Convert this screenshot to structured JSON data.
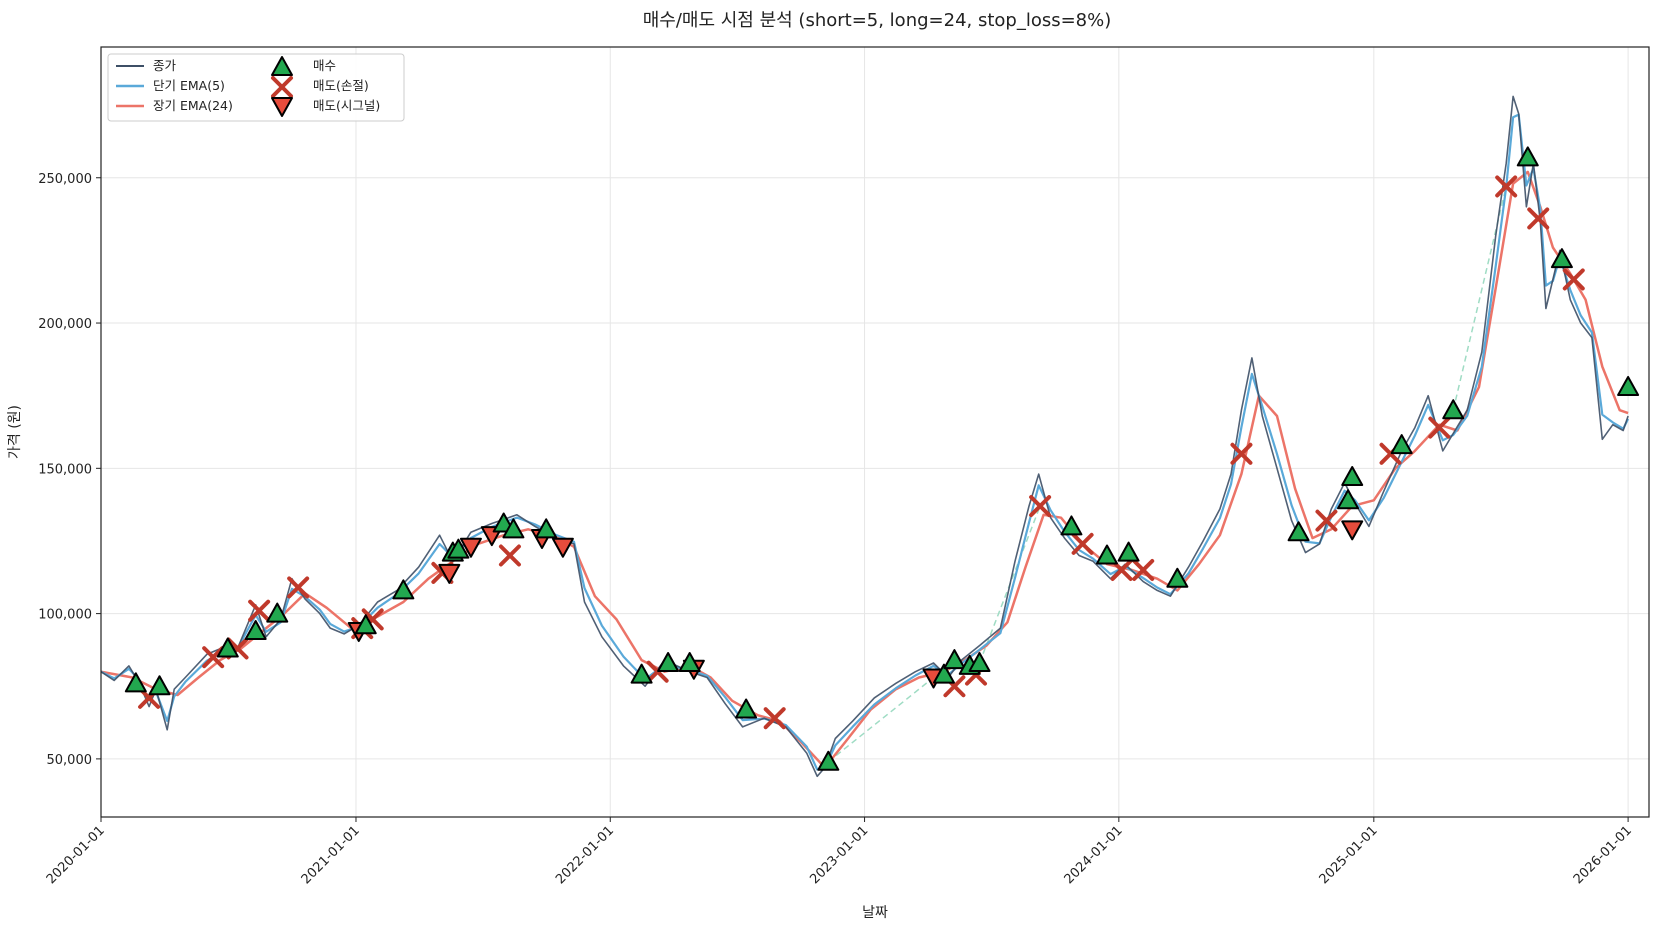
{
  "chart_data": {
    "type": "line",
    "title": "매수/매도 시점 분석 (short=5, long=24, stop_loss=8%)",
    "xlabel": "날짜",
    "ylabel": "가격 (원)",
    "x_range": [
      "2020-01-01",
      "2026-01-31"
    ],
    "ylim": [
      30000,
      295000
    ],
    "grid": true,
    "legend_position": "top-left",
    "x_ticks": [
      "2020-01-01",
      "2021-01-01",
      "2022-01-01",
      "2023-01-01",
      "2024-01-01",
      "2025-01-01",
      "2026-01-01"
    ],
    "y_ticks": [
      50000,
      100000,
      150000,
      200000,
      250000
    ],
    "y_tick_labels": [
      "50,000",
      "100,000",
      "150,000",
      "200,000",
      "250,000"
    ],
    "legend": {
      "close": "종가",
      "ema_short": "단기 EMA(5)",
      "ema_long": "장기 EMA(24)",
      "buy": "매수",
      "sell_stop": "매도(손절)",
      "sell_signal": "매도(시그널)"
    },
    "colors": {
      "close": "#3d4f66",
      "ema_short": "#5aa9d9",
      "ema_long": "#ec7468",
      "buy": "#22a84f",
      "sell_stop": "#c0392b",
      "sell_signal": "#e74c3c",
      "trade_path": "#9fdcc4"
    },
    "close_series": [
      [
        "2020-01-01",
        80000
      ],
      [
        "2020-01-20",
        77000
      ],
      [
        "2020-02-10",
        82000
      ],
      [
        "2020-02-25",
        76000
      ],
      [
        "2020-03-10",
        68000
      ],
      [
        "2020-03-20",
        74000
      ],
      [
        "2020-04-05",
        60000
      ],
      [
        "2020-04-15",
        74000
      ],
      [
        "2020-05-01",
        78000
      ],
      [
        "2020-06-01",
        86000
      ],
      [
        "2020-07-01",
        89000
      ],
      [
        "2020-07-15",
        88000
      ],
      [
        "2020-08-10",
        103000
      ],
      [
        "2020-08-25",
        92000
      ],
      [
        "2020-09-15",
        98000
      ],
      [
        "2020-10-01",
        112000
      ],
      [
        "2020-10-20",
        105000
      ],
      [
        "2020-11-10",
        100000
      ],
      [
        "2020-11-25",
        95000
      ],
      [
        "2020-12-15",
        93000
      ],
      [
        "2021-01-05",
        96000
      ],
      [
        "2021-02-01",
        104000
      ],
      [
        "2021-03-01",
        108000
      ],
      [
        "2021-04-01",
        116000
      ],
      [
        "2021-05-01",
        127000
      ],
      [
        "2021-05-20",
        118000
      ],
      [
        "2021-06-15",
        128000
      ],
      [
        "2021-07-15",
        131000
      ],
      [
        "2021-08-20",
        134000
      ],
      [
        "2021-09-15",
        130000
      ],
      [
        "2021-10-15",
        126000
      ],
      [
        "2021-11-10",
        124000
      ],
      [
        "2021-11-25",
        104000
      ],
      [
        "2021-12-20",
        92000
      ],
      [
        "2022-01-20",
        82000
      ],
      [
        "2022-02-20",
        75000
      ],
      [
        "2022-03-20",
        84000
      ],
      [
        "2022-04-25",
        80000
      ],
      [
        "2022-05-20",
        78000
      ],
      [
        "2022-06-15",
        69000
      ],
      [
        "2022-07-10",
        61000
      ],
      [
        "2022-08-10",
        64000
      ],
      [
        "2022-09-10",
        61000
      ],
      [
        "2022-10-10",
        52000
      ],
      [
        "2022-10-25",
        44000
      ],
      [
        "2022-11-05",
        47000
      ],
      [
        "2022-11-20",
        57000
      ],
      [
        "2022-12-15",
        63000
      ],
      [
        "2023-01-15",
        71000
      ],
      [
        "2023-02-15",
        76000
      ],
      [
        "2023-03-15",
        80000
      ],
      [
        "2023-04-10",
        83000
      ],
      [
        "2023-05-01",
        78000
      ],
      [
        "2023-05-20",
        84000
      ],
      [
        "2023-06-15",
        89000
      ],
      [
        "2023-07-15",
        95000
      ],
      [
        "2023-08-05",
        118000
      ],
      [
        "2023-08-25",
        137000
      ],
      [
        "2023-09-08",
        148000
      ],
      [
        "2023-09-25",
        133000
      ],
      [
        "2023-10-15",
        126000
      ],
      [
        "2023-11-05",
        120000
      ],
      [
        "2023-11-25",
        118000
      ],
      [
        "2023-12-20",
        112000
      ],
      [
        "2024-01-10",
        117000
      ],
      [
        "2024-02-05",
        111000
      ],
      [
        "2024-02-25",
        108000
      ],
      [
        "2024-03-15",
        106000
      ],
      [
        "2024-04-10",
        116000
      ],
      [
        "2024-05-01",
        125000
      ],
      [
        "2024-05-25",
        136000
      ],
      [
        "2024-06-10",
        148000
      ],
      [
        "2024-06-25",
        170000
      ],
      [
        "2024-07-10",
        188000
      ],
      [
        "2024-07-25",
        168000
      ],
      [
        "2024-08-15",
        150000
      ],
      [
        "2024-09-05",
        132000
      ],
      [
        "2024-09-25",
        121000
      ],
      [
        "2024-10-15",
        124000
      ],
      [
        "2024-11-01",
        136000
      ],
      [
        "2024-11-20",
        145000
      ],
      [
        "2024-12-05",
        138000
      ],
      [
        "2024-12-25",
        130000
      ],
      [
        "2025-01-15",
        142000
      ],
      [
        "2025-02-10",
        156000
      ],
      [
        "2025-03-01",
        164000
      ],
      [
        "2025-03-20",
        175000
      ],
      [
        "2025-04-10",
        156000
      ],
      [
        "2025-04-25",
        162000
      ],
      [
        "2025-05-15",
        170000
      ],
      [
        "2025-06-05",
        190000
      ],
      [
        "2025-06-25",
        230000
      ],
      [
        "2025-07-10",
        255000
      ],
      [
        "2025-07-20",
        278000
      ],
      [
        "2025-07-28",
        272000
      ],
      [
        "2025-08-08",
        240000
      ],
      [
        "2025-08-18",
        255000
      ],
      [
        "2025-08-28",
        235000
      ],
      [
        "2025-09-05",
        205000
      ],
      [
        "2025-09-15",
        215000
      ],
      [
        "2025-09-25",
        225000
      ],
      [
        "2025-10-10",
        208000
      ],
      [
        "2025-10-25",
        200000
      ],
      [
        "2025-11-10",
        195000
      ],
      [
        "2025-11-25",
        160000
      ],
      [
        "2025-12-10",
        165000
      ],
      [
        "2025-12-25",
        163000
      ],
      [
        "2026-01-01",
        168000
      ]
    ],
    "ema_long_series": [
      [
        "2020-01-01",
        80000
      ],
      [
        "2020-02-15",
        78000
      ],
      [
        "2020-03-20",
        74000
      ],
      [
        "2020-04-20",
        72000
      ],
      [
        "2020-05-20",
        78000
      ],
      [
        "2020-06-20",
        84000
      ],
      [
        "2020-07-20",
        88000
      ],
      [
        "2020-08-20",
        94000
      ],
      [
        "2020-09-20",
        100000
      ],
      [
        "2020-10-20",
        107000
      ],
      [
        "2020-11-20",
        102000
      ],
      [
        "2020-12-25",
        95000
      ],
      [
        "2021-02-01",
        99000
      ],
      [
        "2021-03-10",
        104000
      ],
      [
        "2021-04-15",
        112000
      ],
      [
        "2021-05-20",
        118000
      ],
      [
        "2021-06-25",
        124000
      ],
      [
        "2021-08-01",
        127000
      ],
      [
        "2021-09-05",
        129000
      ],
      [
        "2021-10-10",
        127000
      ],
      [
        "2021-11-10",
        123000
      ],
      [
        "2021-12-10",
        106000
      ],
      [
        "2022-01-10",
        98000
      ],
      [
        "2022-02-15",
        84000
      ],
      [
        "2022-03-20",
        80000
      ],
      [
        "2022-04-25",
        82000
      ],
      [
        "2022-05-25",
        78000
      ],
      [
        "2022-06-25",
        70000
      ],
      [
        "2022-08-01",
        65000
      ],
      [
        "2022-09-01",
        63000
      ],
      [
        "2022-10-01",
        56000
      ],
      [
        "2022-11-05",
        47000
      ],
      [
        "2022-12-05",
        56000
      ],
      [
        "2023-01-10",
        67000
      ],
      [
        "2023-02-15",
        74000
      ],
      [
        "2023-03-20",
        78000
      ],
      [
        "2023-04-25",
        80000
      ],
      [
        "2023-05-25",
        84000
      ],
      [
        "2023-06-25",
        89000
      ],
      [
        "2023-07-25",
        97000
      ],
      [
        "2023-08-20",
        116000
      ],
      [
        "2023-09-15",
        134000
      ],
      [
        "2023-10-10",
        133000
      ],
      [
        "2023-11-10",
        124000
      ],
      [
        "2023-12-15",
        117000
      ],
      [
        "2024-01-20",
        115000
      ],
      [
        "2024-02-25",
        112000
      ],
      [
        "2024-03-25",
        108000
      ],
      [
        "2024-04-25",
        117000
      ],
      [
        "2024-05-25",
        127000
      ],
      [
        "2024-06-25",
        148000
      ],
      [
        "2024-07-20",
        175000
      ],
      [
        "2024-08-15",
        168000
      ],
      [
        "2024-09-10",
        143000
      ],
      [
        "2024-10-05",
        126000
      ],
      [
        "2024-11-01",
        129000
      ],
      [
        "2024-12-01",
        137000
      ],
      [
        "2025-01-01",
        139000
      ],
      [
        "2025-02-01",
        150000
      ],
      [
        "2025-03-01",
        156000
      ],
      [
        "2025-04-05",
        165000
      ],
      [
        "2025-05-01",
        163000
      ],
      [
        "2025-06-01",
        178000
      ],
      [
        "2025-06-25",
        212000
      ],
      [
        "2025-07-20",
        248000
      ],
      [
        "2025-08-10",
        252000
      ],
      [
        "2025-08-28",
        240000
      ],
      [
        "2025-09-15",
        226000
      ],
      [
        "2025-10-10",
        217000
      ],
      [
        "2025-11-01",
        208000
      ],
      [
        "2025-11-25",
        185000
      ],
      [
        "2025-12-20",
        170000
      ],
      [
        "2026-01-01",
        169000
      ]
    ],
    "buy_points": [
      [
        "2020-02-20",
        76000
      ],
      [
        "2020-03-25",
        75000
      ],
      [
        "2020-07-01",
        88000
      ],
      [
        "2020-08-10",
        94000
      ],
      [
        "2020-09-10",
        100000
      ],
      [
        "2021-01-15",
        96000
      ],
      [
        "2021-03-10",
        108000
      ],
      [
        "2021-05-20",
        121000
      ],
      [
        "2021-05-28",
        122000
      ],
      [
        "2021-08-01",
        131000
      ],
      [
        "2021-08-15",
        129000
      ],
      [
        "2021-10-01",
        129000
      ],
      [
        "2022-02-15",
        79000
      ],
      [
        "2022-03-25",
        83000
      ],
      [
        "2022-04-25",
        83000
      ],
      [
        "2022-07-15",
        67000
      ],
      [
        "2022-11-10",
        49000
      ],
      [
        "2023-04-25",
        79000
      ],
      [
        "2023-05-10",
        84000
      ],
      [
        "2023-06-01",
        82000
      ],
      [
        "2023-06-15",
        83000
      ],
      [
        "2023-10-25",
        130000
      ],
      [
        "2023-12-15",
        120000
      ],
      [
        "2024-01-15",
        121000
      ],
      [
        "2024-03-25",
        112000
      ],
      [
        "2024-09-15",
        128000
      ],
      [
        "2024-11-25",
        139000
      ],
      [
        "2024-12-01",
        147000
      ],
      [
        "2025-02-10",
        158000
      ],
      [
        "2025-04-25",
        170000
      ],
      [
        "2025-08-10",
        257000
      ],
      [
        "2025-09-28",
        222000
      ],
      [
        "2026-01-01",
        178000
      ]
    ],
    "sell_stop_points": [
      [
        "2020-03-10",
        71000
      ],
      [
        "2020-06-10",
        85000
      ],
      [
        "2020-07-15",
        88000
      ],
      [
        "2020-08-15",
        101000
      ],
      [
        "2020-10-10",
        109000
      ],
      [
        "2021-01-10",
        95000
      ],
      [
        "2021-01-25",
        98000
      ],
      [
        "2021-05-05",
        114000
      ],
      [
        "2021-08-10",
        120000
      ],
      [
        "2022-03-10",
        80000
      ],
      [
        "2022-08-25",
        64000
      ],
      [
        "2023-05-10",
        75000
      ],
      [
        "2023-06-10",
        79000
      ],
      [
        "2023-09-10",
        137000
      ],
      [
        "2023-11-10",
        124000
      ],
      [
        "2024-01-05",
        115000
      ],
      [
        "2024-02-05",
        115000
      ],
      [
        "2024-06-25",
        155000
      ],
      [
        "2024-10-25",
        132000
      ],
      [
        "2025-01-25",
        155000
      ],
      [
        "2025-04-05",
        164000
      ],
      [
        "2025-07-10",
        247000
      ],
      [
        "2025-08-25",
        236000
      ],
      [
        "2025-10-15",
        215000
      ]
    ],
    "sell_signal_points": [
      [
        "2021-01-05",
        94000
      ],
      [
        "2021-05-15",
        114000
      ],
      [
        "2021-06-15",
        123000
      ],
      [
        "2021-07-15",
        127000
      ],
      [
        "2021-09-25",
        126000
      ],
      [
        "2021-10-25",
        123000
      ],
      [
        "2022-05-01",
        81000
      ],
      [
        "2023-04-10",
        78000
      ],
      [
        "2024-12-01",
        129000
      ]
    ],
    "trade_paths": [
      [
        [
          "2022-11-10",
          49000
        ],
        [
          "2023-04-10",
          78000
        ]
      ],
      [
        [
          "2023-06-15",
          83000
        ],
        [
          "2023-09-10",
          137000
        ]
      ],
      [
        [
          "2025-04-25",
          170000
        ],
        [
          "2025-07-10",
          247000
        ]
      ]
    ]
  }
}
